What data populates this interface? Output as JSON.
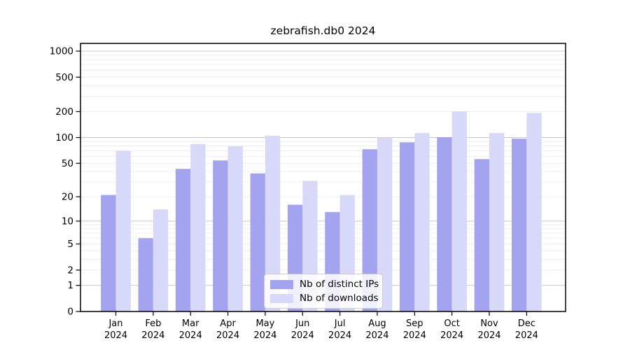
{
  "chart_data": {
    "type": "bar",
    "title": "zebrafish.db0 2024",
    "x_year_label": "2024",
    "categories": [
      "Jan",
      "Feb",
      "Mar",
      "Apr",
      "May",
      "Jun",
      "Jul",
      "Aug",
      "Sep",
      "Oct",
      "Nov",
      "Dec"
    ],
    "series": [
      {
        "name": "Nb of distinct IPs",
        "color": "#a3a3ef",
        "values": [
          21,
          6,
          43,
          54,
          38,
          16,
          13,
          73,
          88,
          101,
          56,
          97
        ]
      },
      {
        "name": "Nb of downloads",
        "color": "#d8d8f9",
        "values": [
          70,
          14,
          84,
          79,
          105,
          31,
          21,
          100,
          113,
          201,
          113,
          193
        ]
      }
    ],
    "y_scale": "log1p",
    "ylim": [
      0,
      1200
    ],
    "y_ticks": [
      0,
      1,
      2,
      5,
      10,
      20,
      50,
      100,
      200,
      500,
      1000
    ],
    "y_major_gridlines": [
      1,
      10,
      100,
      1000
    ],
    "grid": true,
    "legend_position": "lower center",
    "xlabel": "",
    "ylabel": ""
  },
  "colors": {
    "major_grid": "#c9c9c9",
    "minor_grid": "#ececec",
    "axis": "#000000",
    "background": "#ffffff",
    "legend_border": "#cccccc"
  }
}
